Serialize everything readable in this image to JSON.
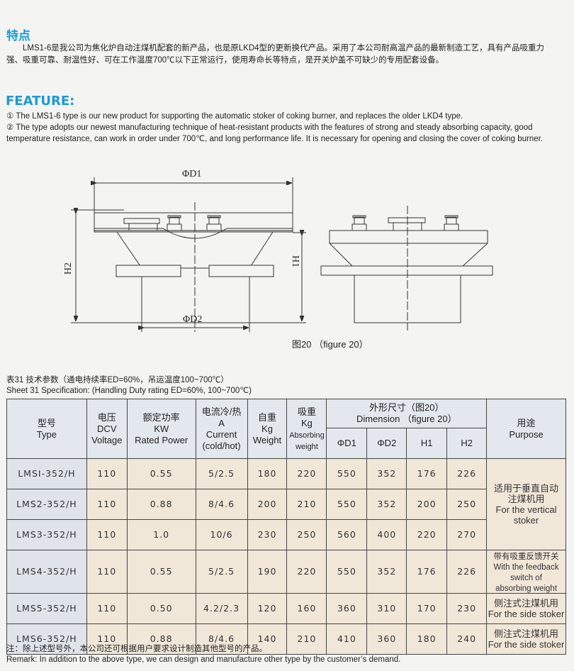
{
  "cn_heading": "特点",
  "cn_para": [
    "　　LMS1-6是我公司为焦化炉自动注煤机配套的新产品，也是原LKD4型的更新换代产品。采用了本公司耐高温产品的最新制造工艺，具有产品吸重力",
    "强、吸重可靠、耐温性好、可在工作温度700℃以下正常运行，使用寿命长等特点，是开关炉盖不可缺少的专用配套设备。"
  ],
  "en_heading": "FEATURE:",
  "en_para": [
    "① The LMS1-6 type is our new product for supporting the automatic stoker of coking burner, and replaces the older LKD4 type.",
    "② The type adopts our newest manufacturing technique of heat-resistant products with the features of strong and steady absorbing capacity, good",
    "temperature resistance, can work in order under 700℃, and long performance life. It is necessary for opening and closing the cover of coking burner."
  ],
  "figure": {
    "d1": "ΦD1",
    "d2": "ΦD2",
    "h1": "H1",
    "h2": "H2",
    "caption": "图20 （figure 20）"
  },
  "table_title_cn": "表31  技术参数（通电持续率ED=60%，吊运温度100~700℃）",
  "table_title_en": "Sheet 31 Specification:  (Handling Duty rating ED=60%, 100~700℃)",
  "headers": {
    "type": [
      "型号",
      "Type"
    ],
    "voltage": [
      "电压",
      "DCV",
      "Voltage"
    ],
    "power": [
      "额定功率",
      "KW",
      "Rated Power"
    ],
    "current": [
      "电流冷/热",
      "A",
      "Current",
      "(cold/hot)"
    ],
    "weight": [
      "自重",
      "Kg",
      "Weight"
    ],
    "absorb": [
      "吸重",
      "Kg",
      "Absorbing",
      "weight"
    ],
    "dimension": [
      "外形尺寸（图20）",
      "Dimension （figure 20）"
    ],
    "dims": [
      "ΦD1",
      "ΦD2",
      "H1",
      "H2"
    ],
    "purpose": [
      "用途",
      "Purpose"
    ]
  },
  "rows": [
    [
      "LMSI-352/H",
      "110",
      "0.55",
      "5/2.5",
      "180",
      "220",
      "550",
      "352",
      "176",
      "226"
    ],
    [
      "LMS2-352/H",
      "110",
      "0.88",
      "8/4.6",
      "200",
      "210",
      "550",
      "352",
      "200",
      "250"
    ],
    [
      "LMS3-352/H",
      "110",
      "1.0",
      "10/6",
      "230",
      "250",
      "560",
      "400",
      "220",
      "270"
    ],
    [
      "LMS4-352/H",
      "110",
      "0.55",
      "5/2.5",
      "190",
      "220",
      "550",
      "352",
      "176",
      "226"
    ],
    [
      "LMS5-352/H",
      "110",
      "0.50",
      "4.2/2.3",
      "120",
      "160",
      "360",
      "310",
      "170",
      "230"
    ],
    [
      "LMS6-352/H",
      "110",
      "0.88",
      "8/4.6",
      "140",
      "210",
      "410",
      "360",
      "180",
      "240"
    ]
  ],
  "purposes": [
    [
      "适用于垂直自动",
      "注煤机用",
      "For the vertical",
      "stoker"
    ],
    [
      "带有吸重反馈开关",
      "With the feedback",
      "switch of",
      "absorbing weight"
    ],
    [
      "侧注式注煤机用",
      "For the side stoker"
    ],
    [
      "侧注式注煤机用",
      "For the side stoker"
    ]
  ],
  "note_cn": "注：除上述型号外，本公司还可根据用户要求设计制造其他型号的产品。",
  "note_en": "Remark: In addition to the above type, we can design and manufacture other type by the customer’s demand.",
  "colors": {
    "heading": "#1a9ad6",
    "header_bg": "#e3e8ee",
    "row_bg": "#f1e7d9",
    "type_bg": "#dfe4ea"
  }
}
